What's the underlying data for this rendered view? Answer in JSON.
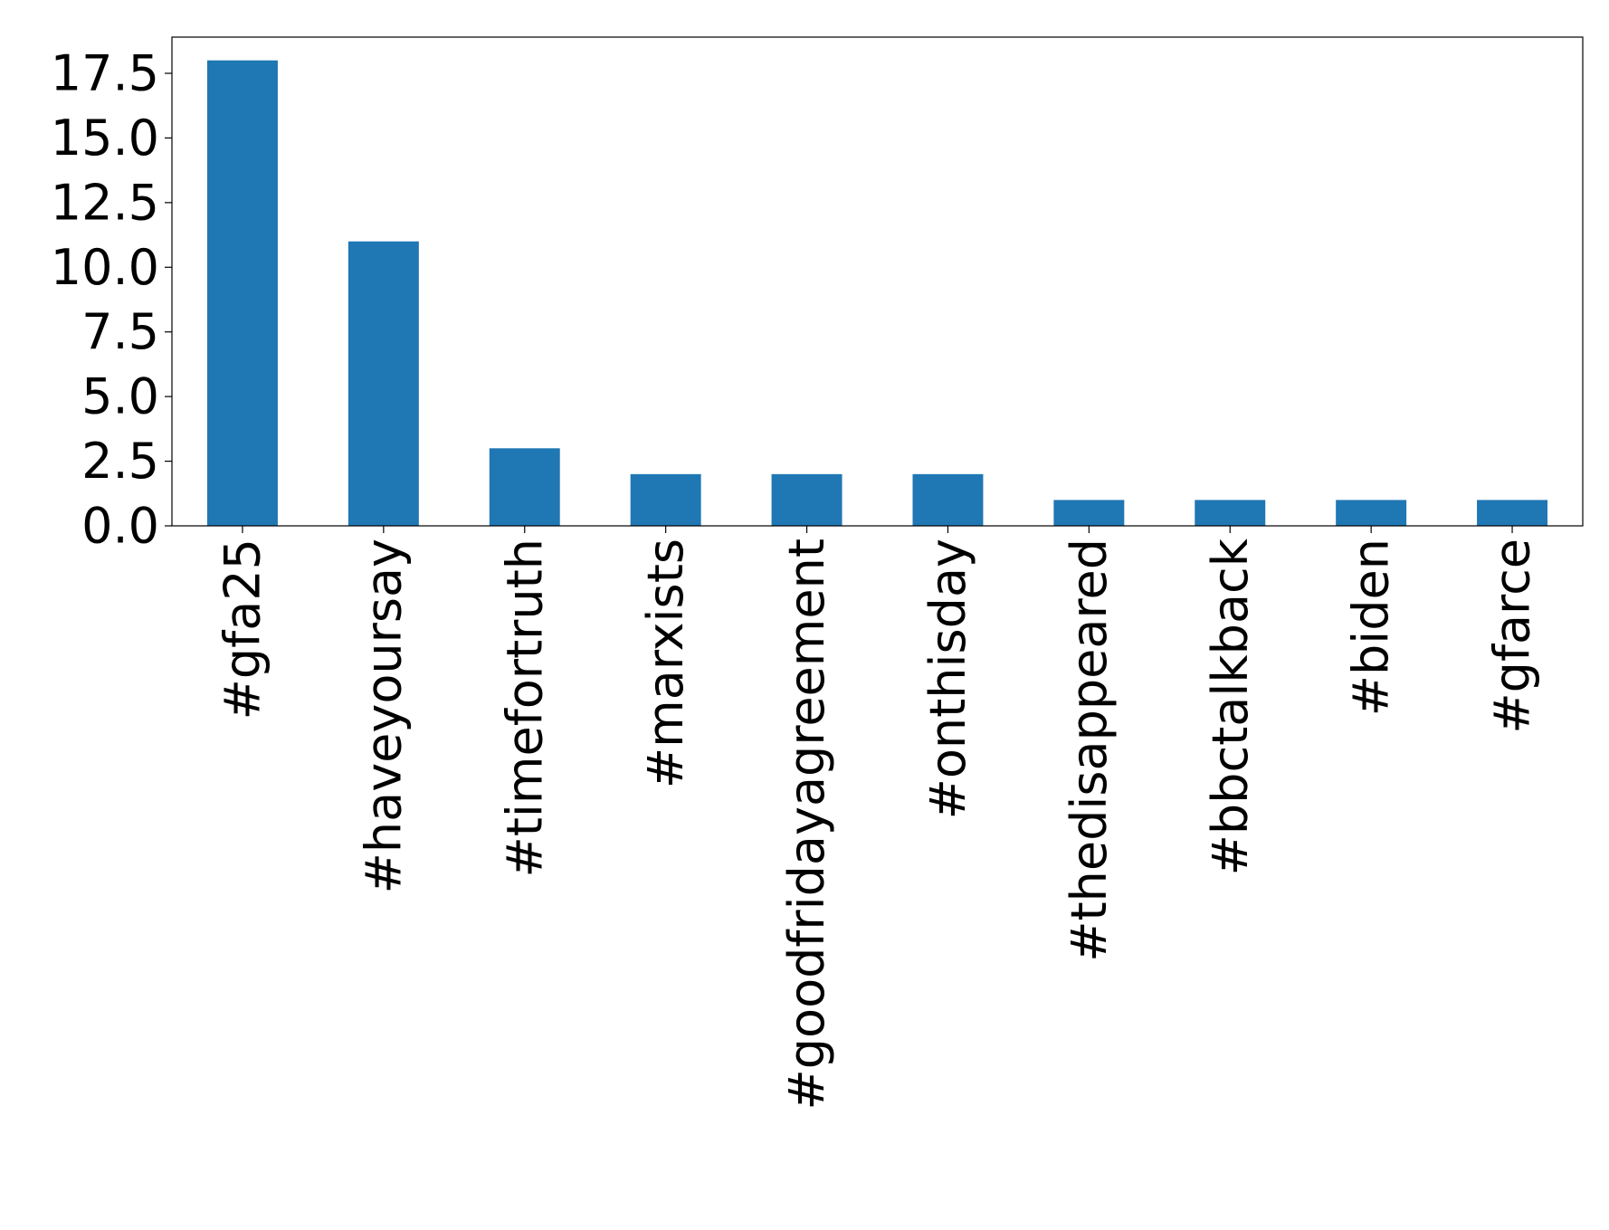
{
  "chart_data": {
    "type": "bar",
    "categories": [
      "#gfa25",
      "#haveyoursay",
      "#timefortruth",
      "#marxists",
      "#goodfridayagreement",
      "#onthisday",
      "#thedisappeared",
      "#bbctalkback",
      "#biden",
      "#gfarce"
    ],
    "values": [
      18,
      11,
      3,
      2,
      2,
      2,
      1,
      1,
      1,
      1
    ],
    "color": "#1f77b4",
    "ylim": [
      0,
      18.9
    ],
    "yticks": [
      {
        "value": 0,
        "label": "0.0"
      },
      2.5,
      {
        "value": 5,
        "label": "5.0"
      },
      7.5,
      {
        "value": 10,
        "label": "10.0"
      },
      12.5,
      {
        "value": 15,
        "label": "15.0"
      },
      17.5
    ],
    "grid": false
  }
}
